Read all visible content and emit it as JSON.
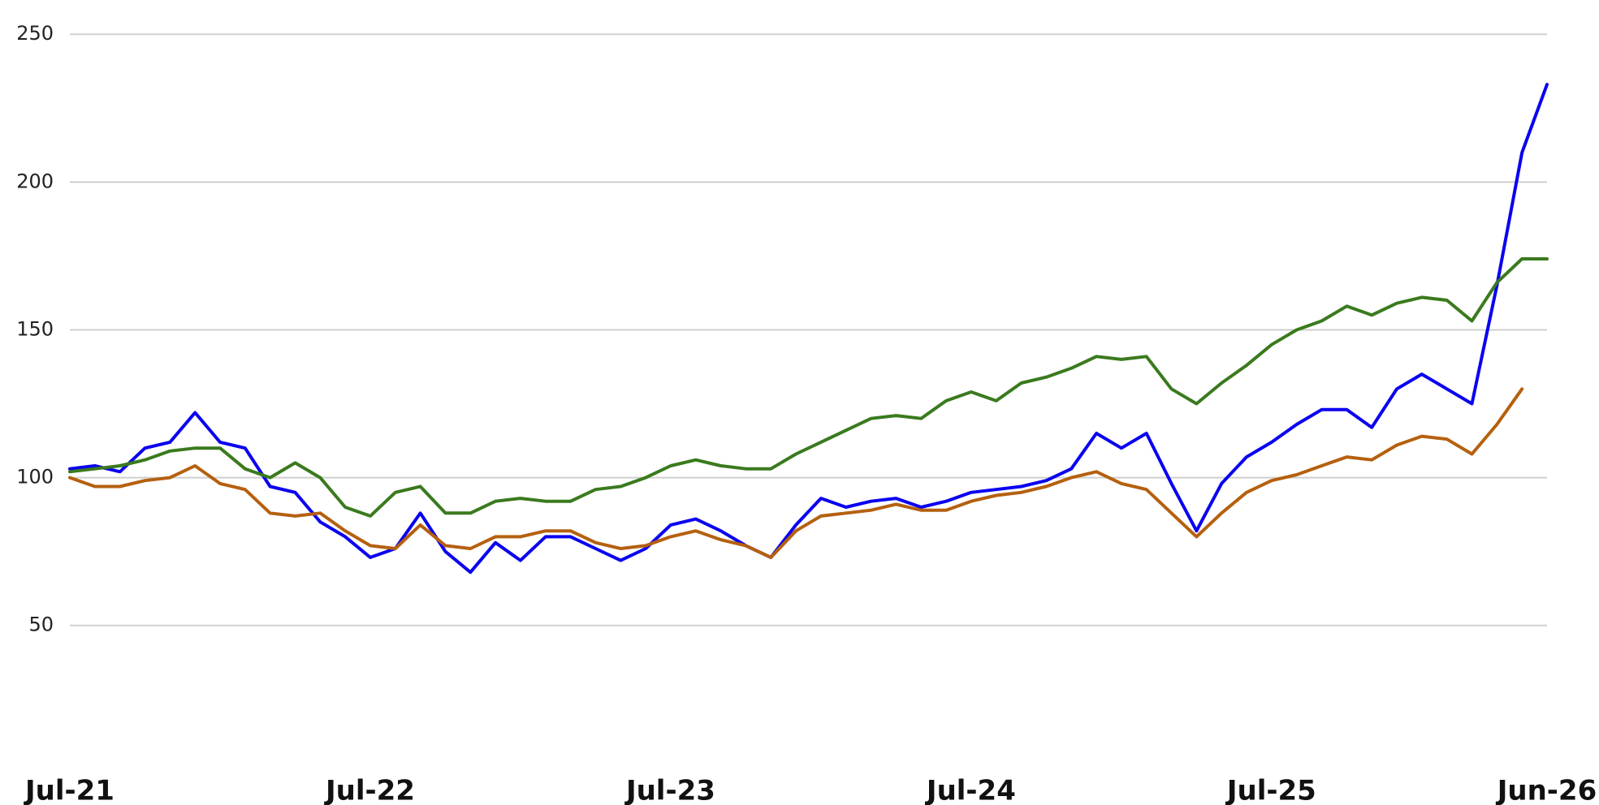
{
  "chart_data": {
    "type": "line",
    "categories": [
      "Jul-21",
      null,
      null,
      null,
      null,
      null,
      null,
      null,
      null,
      null,
      null,
      null,
      "Jul-22",
      null,
      null,
      null,
      null,
      null,
      null,
      null,
      null,
      null,
      null,
      null,
      "Jul-23",
      null,
      null,
      null,
      null,
      null,
      null,
      null,
      null,
      null,
      null,
      null,
      "Jul-24",
      null,
      null,
      null,
      null,
      null,
      null,
      null,
      null,
      null,
      null,
      null,
      "Jul-25",
      null,
      null,
      null,
      null,
      null,
      null,
      null,
      null,
      null,
      null,
      "Jun-26"
    ],
    "series": [
      {
        "color": "#0a00f0",
        "values": [
          103,
          104,
          102,
          110,
          112,
          122,
          112,
          110,
          97,
          95,
          85,
          80,
          73,
          76,
          88,
          75,
          68,
          78,
          72,
          80,
          80,
          76,
          72,
          76,
          84,
          86,
          82,
          77,
          73,
          84,
          93,
          90,
          92,
          93,
          90,
          92,
          95,
          96,
          97,
          99,
          103,
          115,
          110,
          115,
          98,
          82,
          98,
          107,
          112,
          118,
          123,
          123,
          117,
          130,
          135,
          130,
          125,
          165,
          210,
          233
        ]
      },
      {
        "color": "#3a7a1e",
        "values": [
          102,
          103,
          104,
          106,
          109,
          110,
          110,
          103,
          100,
          105,
          100,
          90,
          87,
          95,
          97,
          88,
          88,
          92,
          93,
          92,
          92,
          96,
          97,
          100,
          104,
          106,
          104,
          103,
          103,
          108,
          112,
          116,
          120,
          121,
          120,
          126,
          129,
          126,
          132,
          134,
          137,
          141,
          140,
          141,
          130,
          125,
          132,
          138,
          145,
          150,
          153,
          158,
          155,
          159,
          161,
          160,
          153,
          166,
          174,
          174
        ]
      },
      {
        "color": "#b5600f",
        "values": [
          100,
          97,
          97,
          99,
          100,
          104,
          98,
          96,
          88,
          87,
          88,
          82,
          77,
          76,
          84,
          77,
          76,
          80,
          80,
          82,
          82,
          78,
          76,
          77,
          80,
          82,
          79,
          77,
          73,
          82,
          87,
          88,
          89,
          91,
          89,
          89,
          92,
          94,
          95,
          97,
          100,
          102,
          98,
          96,
          88,
          80,
          88,
          95,
          99,
          101,
          104,
          107,
          106,
          111,
          114,
          113,
          108,
          118,
          130,
          null
        ]
      }
    ],
    "ylim": [
      20,
      255
    ],
    "yticks": [
      50,
      100,
      150,
      200,
      250
    ],
    "grid": true
  }
}
